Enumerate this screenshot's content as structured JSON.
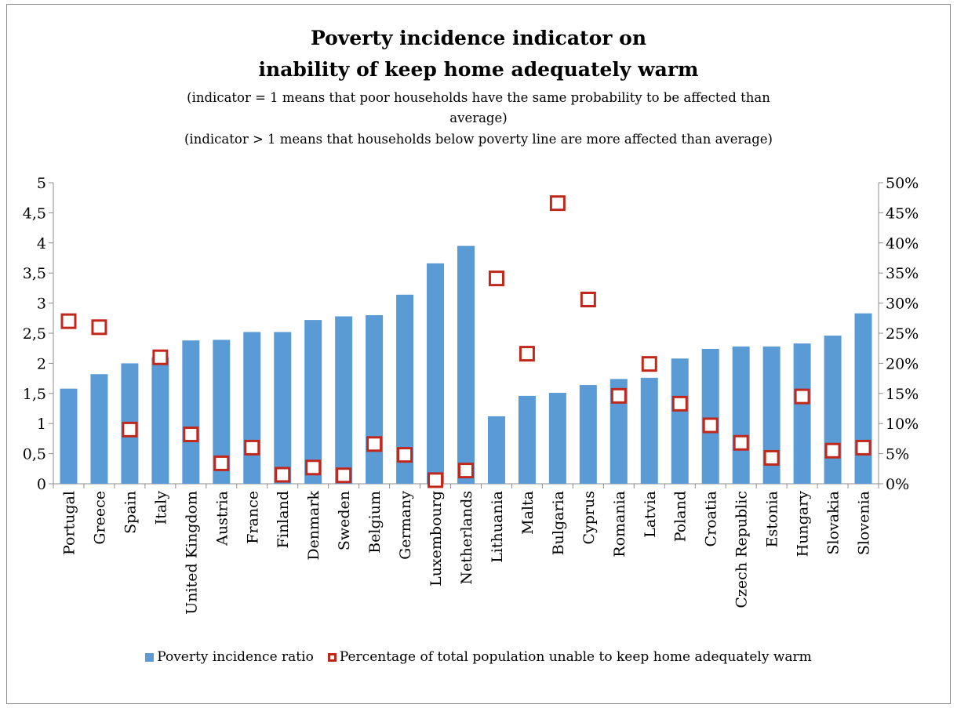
{
  "title_line1": "Poverty incidence indicator on",
  "title_line2": "inability of keep home adequately warm",
  "subtitle_line1": "(indicator = 1 means that poor households have the same probability to be affected than",
  "subtitle_line2": "average)",
  "subtitle_line3": "(indicator > 1 means that households below poverty line are more affected than average)",
  "colors": {
    "bar": "#5b9bd5",
    "marker": "#c0281b",
    "axis": "#8c8c8c"
  },
  "chart_data": {
    "type": "bar",
    "categories": [
      "Portugal",
      "Greece",
      "Spain",
      "Italy",
      "United Kingdom",
      "Austria",
      "France",
      "Finland",
      "Denmark",
      "Sweden",
      "Belgium",
      "Germany",
      "Luxembourg",
      "Netherlands",
      "Lithuania",
      "Malta",
      "Bulgaria",
      "Cyprus",
      "Romania",
      "Latvia",
      "Poland",
      "Croatia",
      "Czech Republic",
      "Estonia",
      "Hungary",
      "Slovakia",
      "Slovenia"
    ],
    "series": [
      {
        "name": "Poverty incidence ratio",
        "type": "bar",
        "axis": "left",
        "values": [
          1.58,
          1.82,
          2.0,
          2.1,
          2.38,
          2.39,
          2.52,
          2.52,
          2.72,
          2.78,
          2.8,
          3.14,
          3.66,
          3.95,
          1.12,
          1.46,
          1.51,
          1.64,
          1.74,
          1.76,
          2.08,
          2.24,
          2.28,
          2.28,
          2.33,
          2.46,
          2.83
        ]
      },
      {
        "name": "Percentage of total population unable to keep home adequately warm",
        "type": "scatter",
        "axis": "right",
        "values": [
          0.27,
          0.26,
          0.09,
          0.21,
          0.082,
          0.034,
          0.06,
          0.015,
          0.027,
          0.014,
          0.066,
          0.048,
          0.006,
          0.022,
          0.341,
          0.216,
          0.466,
          0.306,
          0.146,
          0.199,
          0.133,
          0.097,
          0.068,
          0.043,
          0.145,
          0.055,
          0.06
        ]
      }
    ],
    "y_left": {
      "min": 0,
      "max": 5,
      "ticks": [
        "0",
        "0,5",
        "1",
        "1,5",
        "2",
        "2,5",
        "3",
        "3,5",
        "4",
        "4,5",
        "5"
      ]
    },
    "y_right": {
      "min": 0,
      "max": 0.5,
      "ticks": [
        "0%",
        "5%",
        "10%",
        "15%",
        "20%",
        "25%",
        "30%",
        "35%",
        "40%",
        "45%",
        "50%"
      ]
    },
    "grid": false,
    "legend_position": "bottom"
  }
}
